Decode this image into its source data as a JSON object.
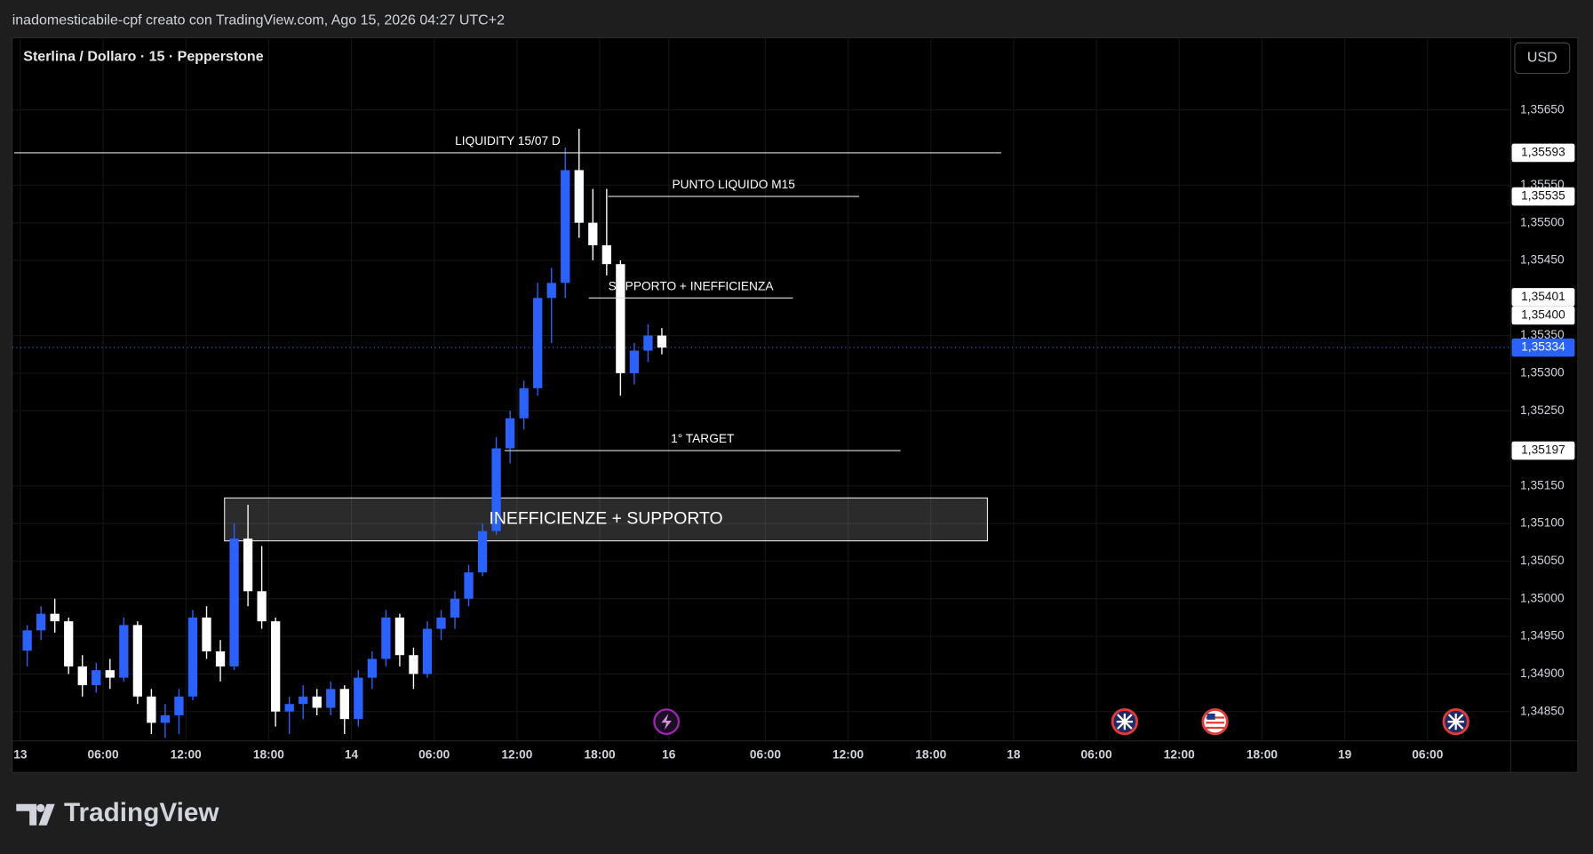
{
  "header": "inadomesticabile-cpf creato con TradingView.com, Ago 15, 2026 04:27 UTC+2",
  "logo": "TradingView",
  "chart_data": {
    "type": "candlestick",
    "title": "Sterlina / Dollaro · 15 · Pepperstone",
    "currency": "USD",
    "up_color": "#2962ff",
    "down_color": "#ffffff",
    "grid": true,
    "x": [
      0.5,
      1.5,
      2.5,
      3.5,
      4.5,
      5.5,
      6.5,
      7.5,
      8.5,
      9.5,
      10.5,
      11.5,
      12.5,
      13.5,
      14.5,
      15.5,
      16.5,
      17.5,
      18.5,
      19.5,
      20.5,
      21.5,
      22.5,
      23.5,
      24.5,
      25.5,
      26.5,
      27.5,
      28.5,
      29.5,
      30.5,
      31.5,
      32.5,
      33.5,
      34.5,
      35.5,
      36.5,
      37.5,
      38.5,
      39.5,
      40.5,
      41.5,
      42.5,
      43.5,
      44.5,
      45.5,
      46.5
    ],
    "open": [
      1.34931,
      1.34958,
      1.3498,
      1.3497,
      1.3491,
      1.34885,
      1.34905,
      1.34895,
      1.34965,
      1.3487,
      1.34835,
      1.34845,
      1.3487,
      1.34975,
      1.3493,
      1.3491,
      1.3508,
      1.3501,
      1.3497,
      1.3485,
      1.3486,
      1.3487,
      1.34855,
      1.3488,
      1.3484,
      1.34895,
      1.3492,
      1.34975,
      1.34925,
      1.349,
      1.3496,
      1.34975,
      1.35,
      1.35035,
      1.3509,
      1.352,
      1.3524,
      1.3528,
      1.354,
      1.3542,
      1.3557,
      1.355,
      1.3547,
      1.35445,
      1.353,
      1.3533,
      1.3535
    ],
    "high": [
      1.34965,
      1.3499,
      1.35,
      1.34975,
      1.34925,
      1.34915,
      1.3492,
      1.34975,
      1.3497,
      1.3488,
      1.3486,
      1.3488,
      1.34985,
      1.3499,
      1.34945,
      1.351,
      1.35125,
      1.3507,
      1.34975,
      1.3487,
      1.34885,
      1.3488,
      1.3489,
      1.34885,
      1.34905,
      1.3493,
      1.34985,
      1.3498,
      1.34935,
      1.3497,
      1.34985,
      1.3501,
      1.35045,
      1.351,
      1.35215,
      1.3525,
      1.3529,
      1.3542,
      1.3544,
      1.356,
      1.35625,
      1.35545,
      1.35545,
      1.3545,
      1.3534,
      1.35365,
      1.3536
    ],
    "low": [
      1.3491,
      1.34945,
      1.34955,
      1.349,
      1.3487,
      1.34875,
      1.3488,
      1.3489,
      1.3486,
      1.3482,
      1.34815,
      1.3482,
      1.34865,
      1.3492,
      1.3489,
      1.34905,
      1.3499,
      1.3496,
      1.3483,
      1.3482,
      1.3484,
      1.34845,
      1.34845,
      1.3482,
      1.3483,
      1.3488,
      1.3491,
      1.3491,
      1.3488,
      1.34895,
      1.34945,
      1.3496,
      1.3499,
      1.3503,
      1.35085,
      1.3518,
      1.35225,
      1.3527,
      1.3534,
      1.354,
      1.3548,
      1.3545,
      1.3543,
      1.3527,
      1.35285,
      1.35315,
      1.35325
    ],
    "close": [
      1.34958,
      1.3498,
      1.3497,
      1.3491,
      1.34885,
      1.34905,
      1.34895,
      1.34965,
      1.3487,
      1.34835,
      1.34845,
      1.3487,
      1.34975,
      1.3493,
      1.3491,
      1.3508,
      1.3501,
      1.3497,
      1.3485,
      1.3486,
      1.3487,
      1.34855,
      1.3488,
      1.3484,
      1.34895,
      1.3492,
      1.34975,
      1.34925,
      1.349,
      1.3496,
      1.34975,
      1.35,
      1.35035,
      1.3509,
      1.352,
      1.3524,
      1.3528,
      1.354,
      1.3542,
      1.3557,
      1.355,
      1.3547,
      1.35445,
      1.353,
      1.3533,
      1.3535,
      1.35334
    ],
    "xlim": [
      -0.6,
      108.2
    ],
    "xticks": [
      {
        "value": 0,
        "label": "13"
      },
      {
        "value": 6,
        "label": "06:00"
      },
      {
        "value": 12,
        "label": "12:00"
      },
      {
        "value": 18,
        "label": "18:00"
      },
      {
        "value": 24,
        "label": "14"
      },
      {
        "value": 30,
        "label": "06:00"
      },
      {
        "value": 36,
        "label": "12:00"
      },
      {
        "value": 42,
        "label": "18:00"
      },
      {
        "value": 47,
        "label": "16"
      },
      {
        "value": 54,
        "label": "06:00"
      },
      {
        "value": 60,
        "label": "12:00"
      },
      {
        "value": 66,
        "label": "18:00"
      },
      {
        "value": 72,
        "label": "18"
      },
      {
        "value": 78,
        "label": "06:00"
      },
      {
        "value": 84,
        "label": "12:00"
      },
      {
        "value": 90,
        "label": "18:00"
      },
      {
        "value": 96,
        "label": "19"
      },
      {
        "value": 102,
        "label": "06:00"
      }
    ],
    "ylim": [
      1.3481,
      1.3574
    ],
    "yticks": [
      {
        "value": 1.3565,
        "label": "1,35650"
      },
      {
        "value": 1.3555,
        "label": "1,35550"
      },
      {
        "value": 1.355,
        "label": "1,35500"
      },
      {
        "value": 1.3545,
        "label": "1,35450"
      },
      {
        "value": 1.3535,
        "label": "1,35350"
      },
      {
        "value": 1.353,
        "label": "1,35300"
      },
      {
        "value": 1.3525,
        "label": "1,35250"
      },
      {
        "value": 1.3515,
        "label": "1,35150"
      },
      {
        "value": 1.351,
        "label": "1,35100"
      },
      {
        "value": 1.3505,
        "label": "1,35050"
      },
      {
        "value": 1.35,
        "label": "1,35000"
      },
      {
        "value": 1.3495,
        "label": "1,34950"
      },
      {
        "value": 1.349,
        "label": "1,34900"
      },
      {
        "value": 1.3485,
        "label": "1,34850"
      }
    ],
    "last_price": {
      "value": 1.35334,
      "label": "1,35334"
    },
    "lines": [
      {
        "text": "LIQUIDITY 15/07 D",
        "price": {
          "value": 1.35593,
          "label": "1,35593"
        },
        "x_range": [
          -0.44,
          71.1
        ]
      },
      {
        "text": "PUNTO LIQUIDO M15",
        "price": {
          "value": 1.35535,
          "label": "1,35535"
        },
        "x_range": [
          42.6,
          60.8
        ]
      },
      {
        "text": "SUPPORTO + INEFFICIENZA",
        "price": {
          "value": 1.354,
          "label": "1,35400"
        },
        "x_range": [
          41.2,
          56.0
        ]
      },
      {
        "text": "1° TARGET",
        "price": {
          "value": 1.35197,
          "label": "1,35197"
        },
        "x_range": [
          35.1,
          63.8
        ]
      }
    ],
    "extra_price_labels": [
      {
        "value": 1.35401,
        "label": "1,35401"
      }
    ],
    "box": {
      "text": "INEFFICIENZE + SUPPORTO",
      "y_range": [
        1.35077,
        1.35134
      ],
      "x_range": [
        14.8,
        70.1
      ]
    }
  }
}
